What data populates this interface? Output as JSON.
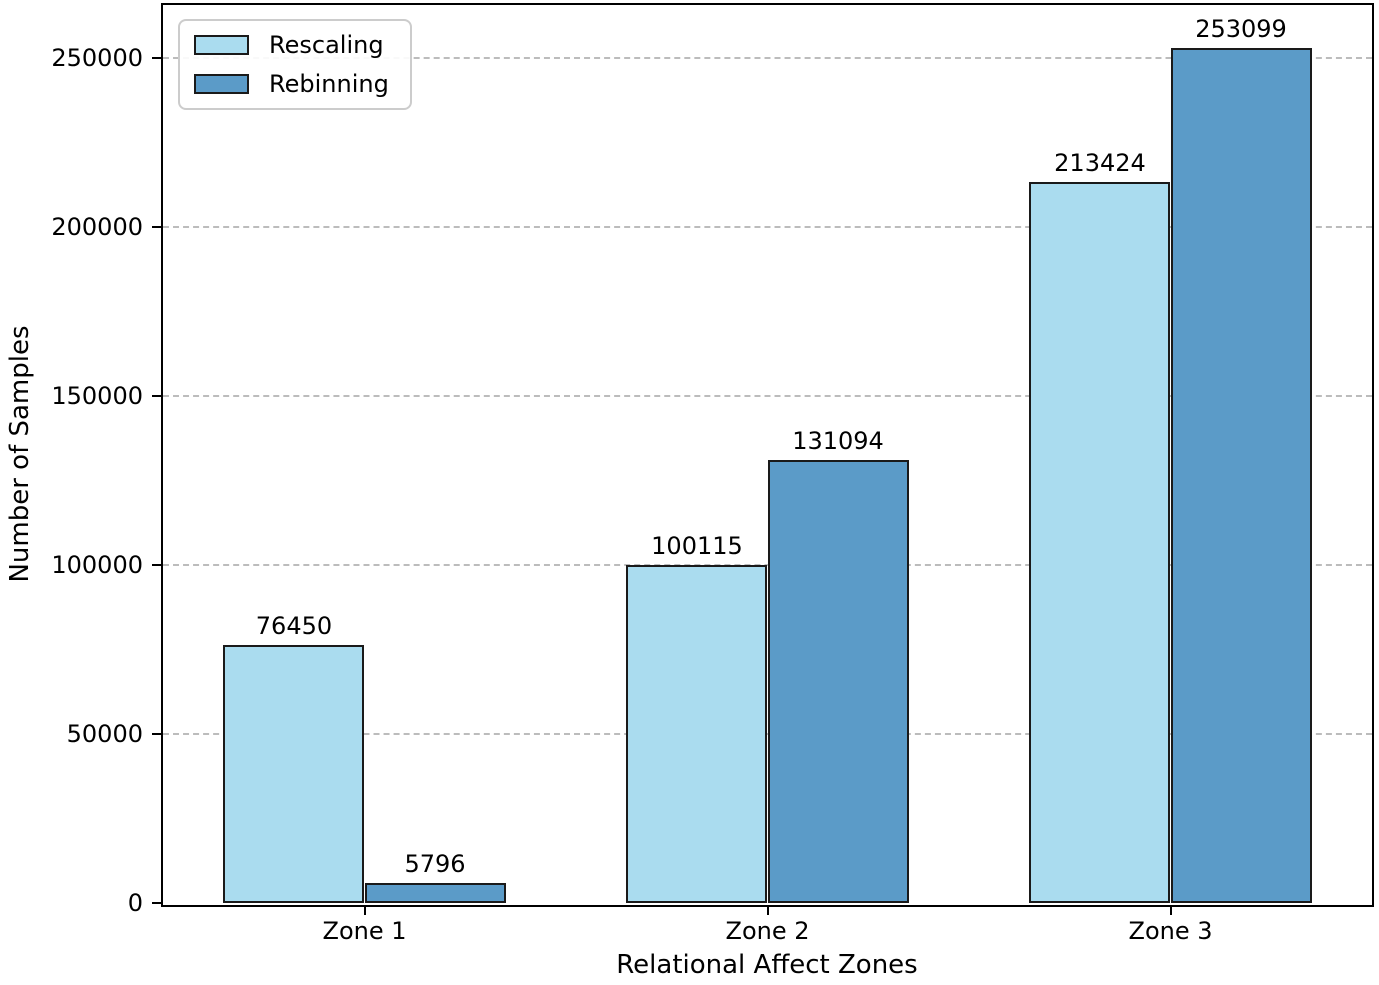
{
  "chart_data": {
    "type": "bar",
    "title": "",
    "xlabel": "Relational Affect Zones",
    "ylabel": "Number of Samples",
    "categories": [
      "Zone 1",
      "Zone 2",
      "Zone 3"
    ],
    "series": [
      {
        "name": "Rescaling",
        "color": "#aadcef",
        "values": [
          76450,
          100115,
          213424
        ]
      },
      {
        "name": "Rebinning",
        "color": "#5b9bc8",
        "values": [
          5796,
          131094,
          253099
        ]
      }
    ],
    "ylim": [
      0,
      265754
    ],
    "yticks": [
      0,
      50000,
      100000,
      150000,
      200000,
      250000
    ],
    "grid": "horizontal-dashed",
    "grid_color": "#bcbcbc",
    "legend_position": "upper-left",
    "bar_edge_color": "#1a1a1a",
    "spine_color": "#000000",
    "value_labels": true
  }
}
